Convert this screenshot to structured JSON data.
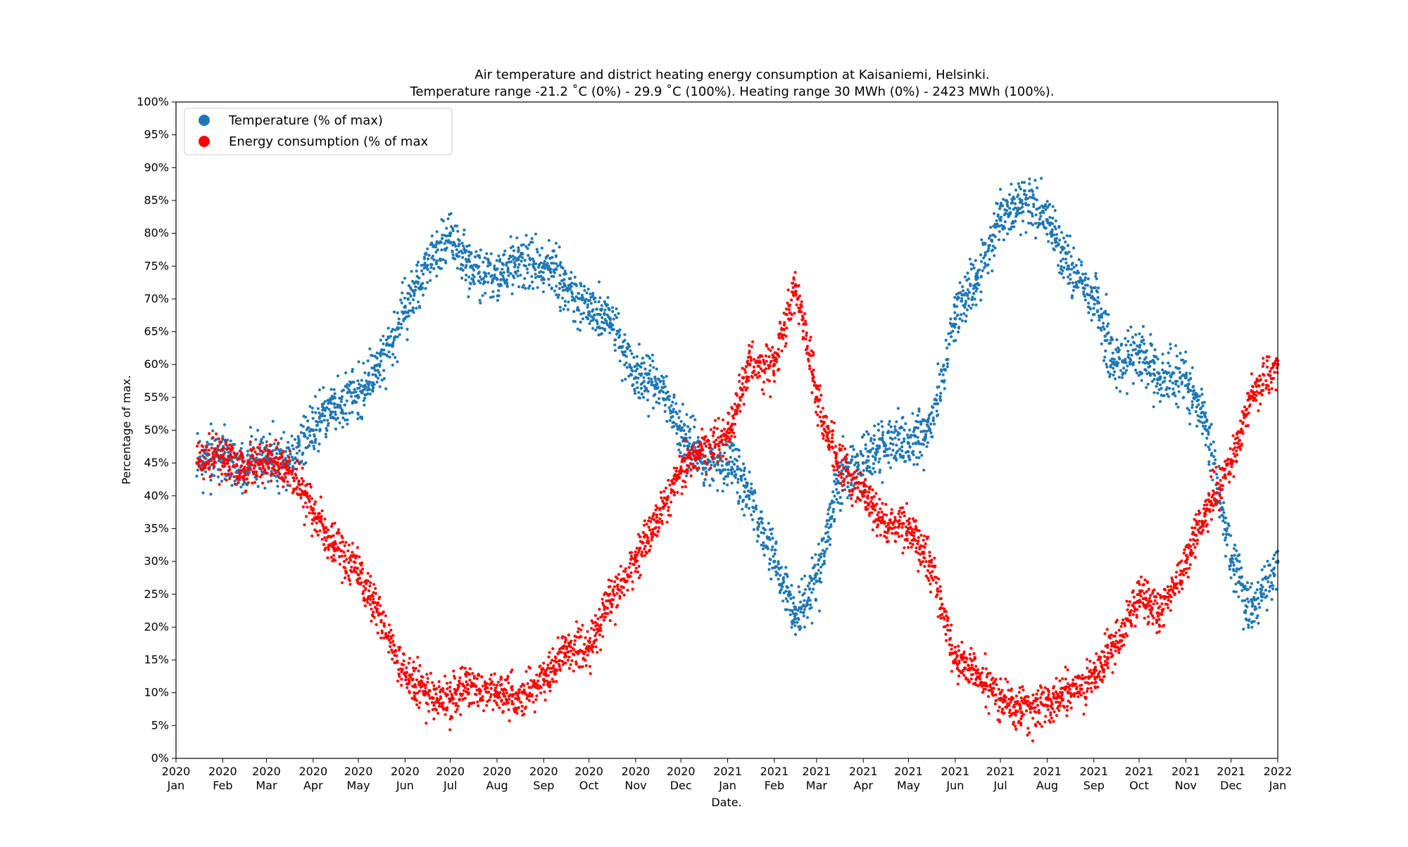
{
  "chart_data": {
    "type": "scatter",
    "title": "Air temperature and district heating energy consumption at Kaisaniemi, Helsinki.",
    "subtitle": "Temperature range -21.2 ˚C (0%) - 29.9 ˚C (100%). Heating range 30 MWh (0%) - 2423 MWh (100%).",
    "xlabel": "Date.",
    "ylabel": "Percentage of max.",
    "xlim": [
      "2020-01-01",
      "2022-01-01"
    ],
    "ylim": [
      0,
      100
    ],
    "y_ticks": [
      {
        "value": 0,
        "label": "0%"
      },
      {
        "value": 5,
        "label": "5%"
      },
      {
        "value": 10,
        "label": "10%"
      },
      {
        "value": 15,
        "label": "15%"
      },
      {
        "value": 20,
        "label": "20%"
      },
      {
        "value": 25,
        "label": "25%"
      },
      {
        "value": 30,
        "label": "30%"
      },
      {
        "value": 35,
        "label": "35%"
      },
      {
        "value": 40,
        "label": "40%"
      },
      {
        "value": 45,
        "label": "45%"
      },
      {
        "value": 50,
        "label": "50%"
      },
      {
        "value": 55,
        "label": "55%"
      },
      {
        "value": 60,
        "label": "60%"
      },
      {
        "value": 65,
        "label": "65%"
      },
      {
        "value": 70,
        "label": "70%"
      },
      {
        "value": 75,
        "label": "75%"
      },
      {
        "value": 80,
        "label": "80%"
      },
      {
        "value": 85,
        "label": "85%"
      },
      {
        "value": 90,
        "label": "90%"
      },
      {
        "value": 95,
        "label": "95%"
      },
      {
        "value": 100,
        "label": "100%"
      }
    ],
    "x_ticks": [
      {
        "date": "2020-01-01",
        "year": "2020",
        "month": "Jan"
      },
      {
        "date": "2020-02-01",
        "year": "2020",
        "month": "Feb"
      },
      {
        "date": "2020-03-01",
        "year": "2020",
        "month": "Mar"
      },
      {
        "date": "2020-04-01",
        "year": "2020",
        "month": "Apr"
      },
      {
        "date": "2020-05-01",
        "year": "2020",
        "month": "May"
      },
      {
        "date": "2020-06-01",
        "year": "2020",
        "month": "Jun"
      },
      {
        "date": "2020-07-01",
        "year": "2020",
        "month": "Jul"
      },
      {
        "date": "2020-08-01",
        "year": "2020",
        "month": "Aug"
      },
      {
        "date": "2020-09-01",
        "year": "2020",
        "month": "Sep"
      },
      {
        "date": "2020-10-01",
        "year": "2020",
        "month": "Oct"
      },
      {
        "date": "2020-11-01",
        "year": "2020",
        "month": "Nov"
      },
      {
        "date": "2020-12-01",
        "year": "2020",
        "month": "Dec"
      },
      {
        "date": "2021-01-01",
        "year": "2021",
        "month": "Jan"
      },
      {
        "date": "2021-02-01",
        "year": "2021",
        "month": "Feb"
      },
      {
        "date": "2021-03-01",
        "year": "2021",
        "month": "Mar"
      },
      {
        "date": "2021-04-01",
        "year": "2021",
        "month": "Apr"
      },
      {
        "date": "2021-05-01",
        "year": "2021",
        "month": "May"
      },
      {
        "date": "2021-06-01",
        "year": "2021",
        "month": "Jun"
      },
      {
        "date": "2021-07-01",
        "year": "2021",
        "month": "Jul"
      },
      {
        "date": "2021-08-01",
        "year": "2021",
        "month": "Aug"
      },
      {
        "date": "2021-09-01",
        "year": "2021",
        "month": "Sep"
      },
      {
        "date": "2021-10-01",
        "year": "2021",
        "month": "Oct"
      },
      {
        "date": "2021-11-01",
        "year": "2021",
        "month": "Nov"
      },
      {
        "date": "2021-12-01",
        "year": "2021",
        "month": "Dec"
      },
      {
        "date": "2022-01-01",
        "year": "2022",
        "month": "Jan"
      }
    ],
    "legend": "top-left",
    "grid": false,
    "series": [
      {
        "name": "Temperature (% of max)",
        "color": "#1f77b4",
        "x": [
          "2020-01-15",
          "2020-02-01",
          "2020-02-15",
          "2020-03-01",
          "2020-03-15",
          "2020-04-01",
          "2020-04-15",
          "2020-05-01",
          "2020-05-15",
          "2020-06-01",
          "2020-06-15",
          "2020-07-01",
          "2020-07-15",
          "2020-08-01",
          "2020-08-15",
          "2020-09-01",
          "2020-09-15",
          "2020-10-01",
          "2020-10-15",
          "2020-11-01",
          "2020-11-15",
          "2020-12-01",
          "2020-12-15",
          "2021-01-01",
          "2021-01-15",
          "2021-02-01",
          "2021-02-15",
          "2021-03-01",
          "2021-03-15",
          "2021-04-01",
          "2021-04-15",
          "2021-05-01",
          "2021-05-15",
          "2021-06-01",
          "2021-06-15",
          "2021-07-01",
          "2021-07-15",
          "2021-08-01",
          "2021-08-15",
          "2021-09-01",
          "2021-09-15",
          "2021-10-01",
          "2021-10-15",
          "2021-11-01",
          "2021-11-15",
          "2021-12-01",
          "2021-12-15",
          "2022-01-01"
        ],
        "values": [
          45,
          47,
          44,
          46,
          45,
          50,
          54,
          55,
          60,
          68,
          75,
          80,
          75,
          73,
          76,
          75,
          72,
          68,
          67,
          58,
          57,
          50,
          45,
          45,
          40,
          30,
          22,
          27,
          42,
          45,
          48,
          48,
          50,
          67,
          73,
          82,
          85,
          82,
          75,
          70,
          60,
          62,
          58,
          58,
          50,
          30,
          22,
          30
        ]
      },
      {
        "name": "Energy consumption (% of max",
        "color": "#ff0000",
        "x": [
          "2020-01-15",
          "2020-02-01",
          "2020-02-15",
          "2020-03-01",
          "2020-03-15",
          "2020-04-01",
          "2020-04-15",
          "2020-05-01",
          "2020-05-15",
          "2020-06-01",
          "2020-06-15",
          "2020-07-01",
          "2020-07-15",
          "2020-08-01",
          "2020-08-15",
          "2020-09-01",
          "2020-09-15",
          "2020-10-01",
          "2020-10-15",
          "2020-11-01",
          "2020-11-15",
          "2020-12-01",
          "2020-12-15",
          "2021-01-01",
          "2021-01-15",
          "2021-02-01",
          "2021-02-15",
          "2021-03-01",
          "2021-03-15",
          "2021-04-01",
          "2021-04-15",
          "2021-05-01",
          "2021-05-15",
          "2021-06-01",
          "2021-06-15",
          "2021-07-01",
          "2021-07-15",
          "2021-08-01",
          "2021-08-15",
          "2021-09-01",
          "2021-09-15",
          "2021-10-01",
          "2021-10-15",
          "2021-11-01",
          "2021-11-15",
          "2021-12-01",
          "2021-12-15",
          "2022-01-01"
        ],
        "values": [
          45,
          46,
          44,
          45,
          44,
          38,
          32,
          28,
          22,
          13,
          10,
          9,
          11,
          10,
          9,
          12,
          16,
          17,
          24,
          30,
          36,
          44,
          47,
          49,
          60,
          60,
          72,
          55,
          45,
          40,
          36,
          35,
          30,
          15,
          13,
          9,
          7,
          8,
          10,
          13,
          17,
          25,
          22,
          30,
          38,
          45,
          55,
          60
        ]
      }
    ]
  }
}
